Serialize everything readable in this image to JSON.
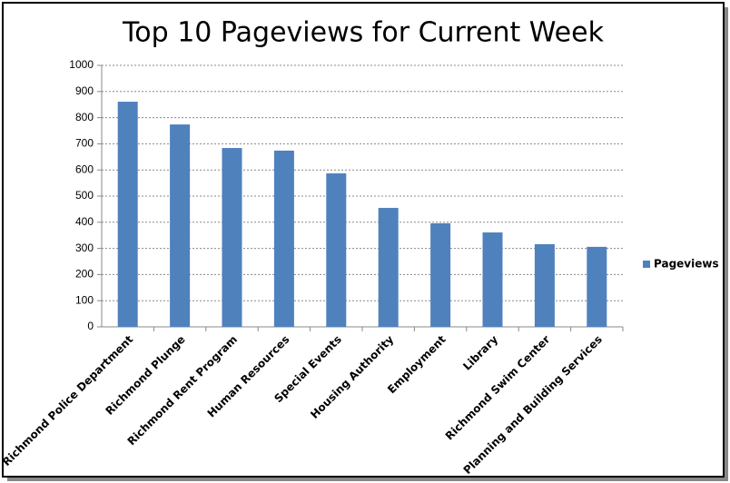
{
  "chart_data": {
    "type": "bar",
    "title": "Top 10 Pageviews for Current Week",
    "categories": [
      "Richmond Police Department",
      "Richmond Plunge",
      "Richmond Rent Program",
      "Human Resources",
      "Special Events",
      "Housing Authority",
      "Employment",
      "Library",
      "Richmond Swim Center",
      "Planning and Building Services"
    ],
    "series": [
      {
        "name": "Pageviews",
        "color": "#4f81bd",
        "values": [
          861,
          774,
          684,
          674,
          587,
          455,
          396,
          361,
          316,
          306
        ]
      }
    ],
    "ylim": [
      0,
      1000
    ],
    "yticks": [
      0,
      100,
      200,
      300,
      400,
      500,
      600,
      700,
      800,
      900,
      1000
    ],
    "grid": true,
    "legend": "right"
  }
}
